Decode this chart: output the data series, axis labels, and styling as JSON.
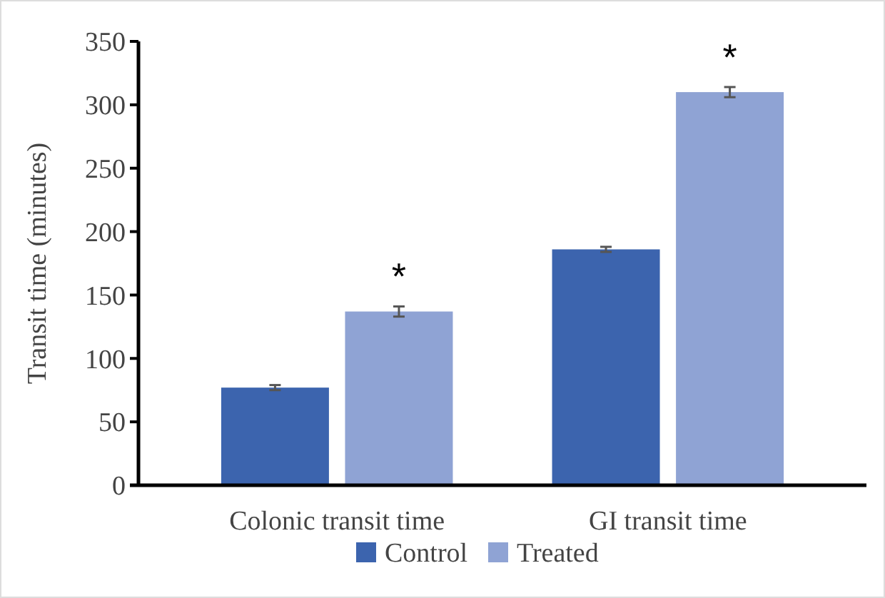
{
  "chart_data": {
    "type": "bar",
    "ylabel": "Transit time (minutes)",
    "categories": [
      "Colonic transit time",
      "GI transit time"
    ],
    "series": [
      {
        "name": "Control",
        "color": "#3c64ae",
        "values": [
          77,
          186
        ],
        "errors": [
          2,
          2
        ]
      },
      {
        "name": "Treated",
        "color": "#8fa3d4",
        "values": [
          137,
          310
        ],
        "errors": [
          4,
          4
        ]
      }
    ],
    "ylim": [
      0,
      350
    ],
    "yticks": [
      0,
      50,
      100,
      150,
      200,
      250,
      300,
      350
    ],
    "grid": false,
    "legend": "bottom",
    "annotations": [
      "*",
      "*"
    ]
  }
}
